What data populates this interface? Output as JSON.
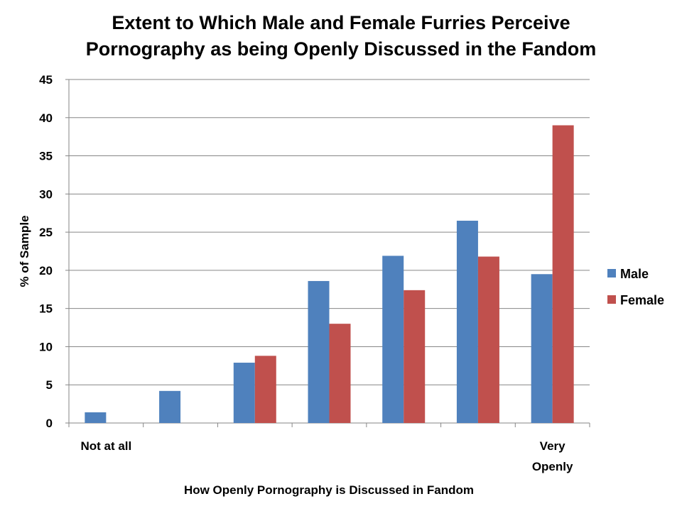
{
  "chart_data": {
    "type": "bar",
    "title_lines": [
      "Extent to Which Male and Female Furries Perceive",
      "Pornography as being Openly Discussed in the Fandom"
    ],
    "xlabel": "How Openly Pornography is Discussed in Fandom",
    "ylabel": "% of Sample",
    "ylim": [
      0,
      45
    ],
    "yticks": [
      0,
      5,
      10,
      15,
      20,
      25,
      30,
      35,
      40,
      45
    ],
    "grid": true,
    "legend_position": "right",
    "categories": [
      "Not at all",
      "",
      "",
      "",
      "",
      "",
      "Very Openly"
    ],
    "category_label_lines": [
      [
        "Not at all"
      ],
      [],
      [],
      [],
      [],
      [],
      [
        "Very",
        "Openly"
      ]
    ],
    "series": [
      {
        "name": "Male",
        "color": "#4F81BD",
        "values": [
          1.4,
          4.2,
          7.9,
          18.6,
          21.9,
          26.5,
          19.5
        ]
      },
      {
        "name": "Female",
        "color": "#C0504D",
        "values": [
          0,
          0,
          8.8,
          13.0,
          17.4,
          21.8,
          39.0
        ]
      }
    ]
  }
}
